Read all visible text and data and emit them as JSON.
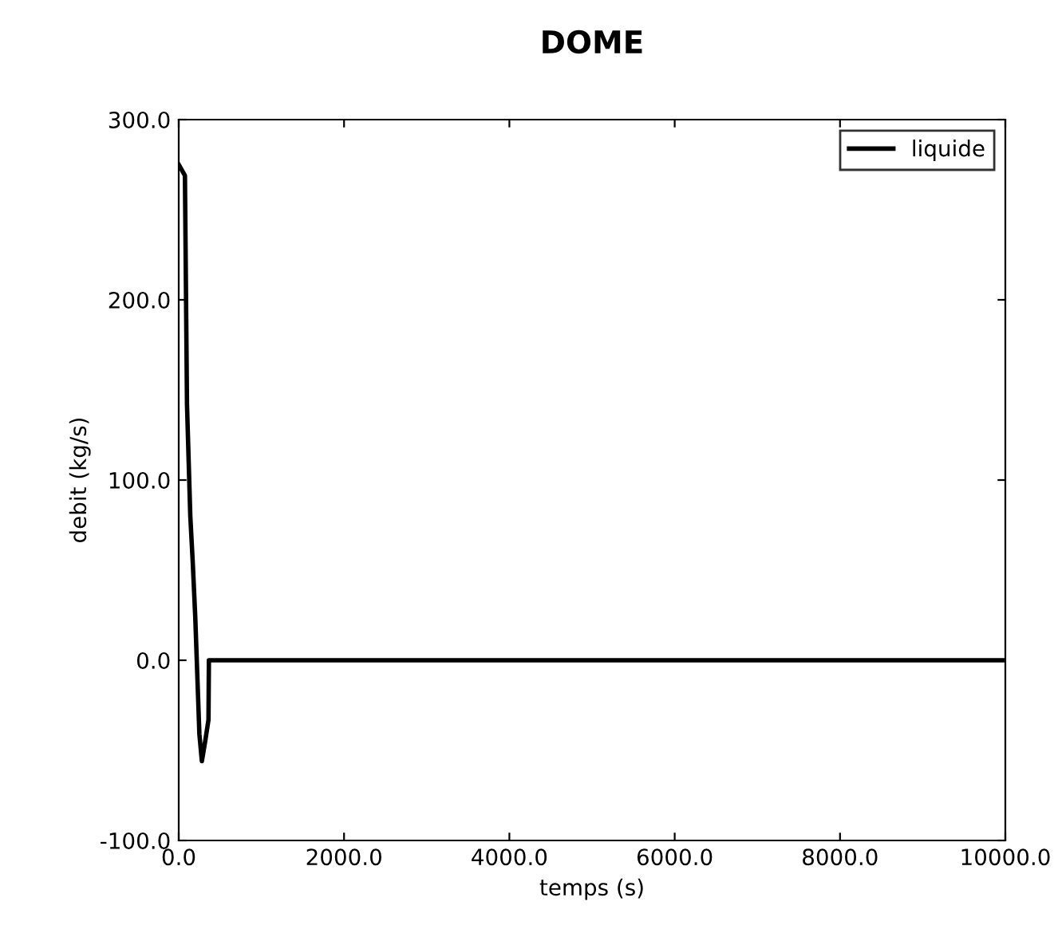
{
  "chart_data": {
    "type": "line",
    "title": "DOME",
    "xlabel": "temps (s)",
    "ylabel": "debit (kg/s)",
    "xlim": [
      0,
      10000
    ],
    "ylim": [
      -100,
      300
    ],
    "xticks": [
      {
        "value": 0,
        "label": "0.0"
      },
      {
        "value": 2000,
        "label": "2000.0"
      },
      {
        "value": 4000,
        "label": "4000.0"
      },
      {
        "value": 6000,
        "label": "6000.0"
      },
      {
        "value": 8000,
        "label": "8000.0"
      },
      {
        "value": 10000,
        "label": "10000.0"
      }
    ],
    "yticks": [
      {
        "value": -100,
        "label": "-100.0"
      },
      {
        "value": 0,
        "label": "0.0"
      },
      {
        "value": 100,
        "label": "100.0"
      },
      {
        "value": 200,
        "label": "200.0"
      },
      {
        "value": 300,
        "label": "300.0"
      }
    ],
    "grid": false,
    "legend": "top right",
    "line_style": "solid",
    "marker": "none",
    "series": [
      {
        "name": "liquide",
        "color": "#000000",
        "x": [
          0,
          75,
          100,
          140,
          170,
          200,
          250,
          280,
          320,
          360,
          365,
          10000
        ],
        "values": [
          275,
          269,
          142,
          80,
          54,
          24,
          -41,
          -56,
          -45,
          -33,
          0,
          0
        ]
      }
    ]
  }
}
